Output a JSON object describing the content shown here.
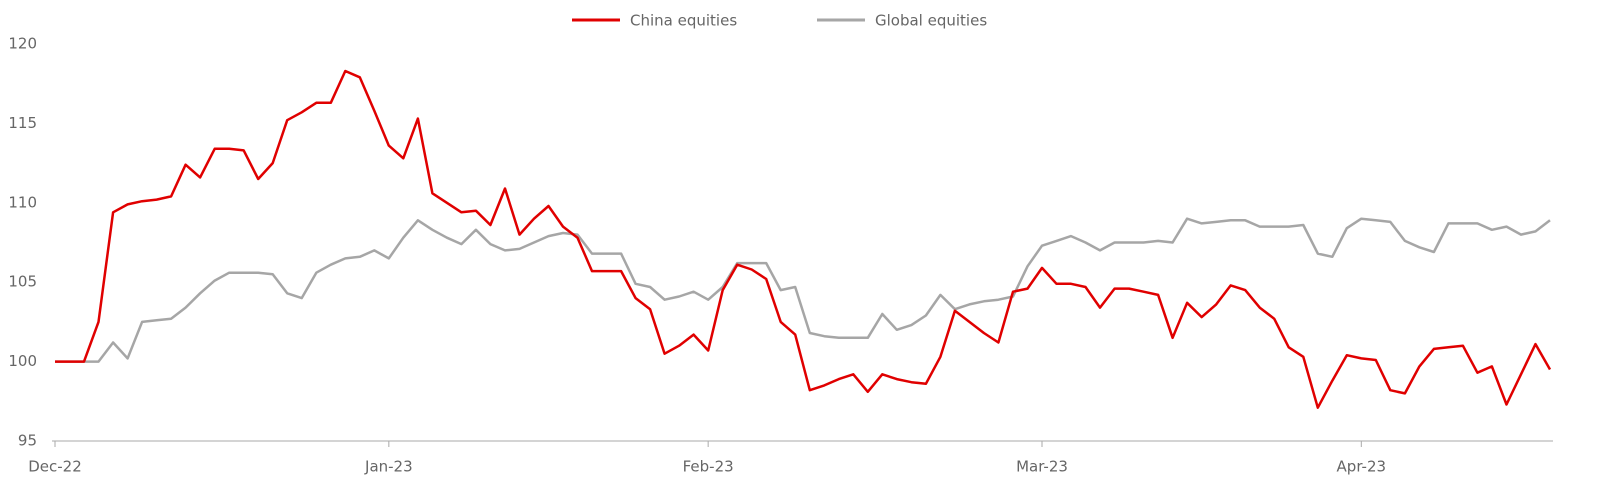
{
  "chart_data": {
    "type": "line",
    "categories": [
      "Dec-22",
      null,
      null,
      null,
      null,
      null,
      null,
      null,
      null,
      null,
      null,
      null,
      null,
      null,
      null,
      null,
      null,
      null,
      null,
      null,
      null,
      null,
      null,
      "Jan-23",
      null,
      null,
      null,
      null,
      null,
      null,
      null,
      null,
      null,
      null,
      null,
      null,
      null,
      null,
      null,
      null,
      null,
      null,
      null,
      null,
      null,
      "Feb-23",
      null,
      null,
      null,
      null,
      null,
      null,
      null,
      null,
      null,
      null,
      null,
      null,
      null,
      null,
      null,
      null,
      null,
      null,
      null,
      null,
      null,
      null,
      "Mar-23",
      null,
      null,
      null,
      null,
      null,
      null,
      null,
      null,
      null,
      null,
      null,
      null,
      null,
      null,
      null,
      null,
      null,
      null,
      null,
      null,
      null,
      "Apr-23",
      null,
      null,
      null,
      null,
      null,
      null,
      null,
      null,
      null,
      null,
      null,
      null,
      null
    ],
    "series": [
      {
        "name": "China equities",
        "color": "#e00000",
        "values": [
          100,
          100,
          100,
          102.5,
          109.4,
          109.9,
          110.1,
          110.2,
          110.4,
          112.4,
          111.6,
          113.4,
          113.4,
          113.3,
          111.5,
          112.5,
          115.2,
          115.7,
          116.3,
          116.3,
          118.3,
          117.9,
          115.8,
          113.6,
          112.8,
          115.3,
          110.6,
          110,
          109.4,
          109.5,
          108.6,
          110.9,
          108,
          109,
          109.8,
          108.5,
          107.8,
          105.7,
          105.7,
          105.7,
          104,
          103.3,
          100.5,
          101,
          101.7,
          100.7,
          104.5,
          106.1,
          105.8,
          105.2,
          102.5,
          101.7,
          98.2,
          98.5,
          98.9,
          99.2,
          98.1,
          99.2,
          98.9,
          98.7,
          98.6,
          100.3,
          103.2,
          102.5,
          101.8,
          101.2,
          104.4,
          104.6,
          105.9,
          104.9,
          104.9,
          104.7,
          103.4,
          104.6,
          104.6,
          104.4,
          104.2,
          101.5,
          103.7,
          102.8,
          103.6,
          104.8,
          104.5,
          103.4,
          102.7,
          100.9,
          100.3,
          97.1,
          98.8,
          100.4,
          100.2,
          100.1,
          98.2,
          98,
          99.7,
          100.8,
          100.9,
          101,
          99.3,
          99.7,
          97.3,
          99.2,
          101.1,
          99.5
        ]
      },
      {
        "name": "Global equities",
        "color": "#a6a6a6",
        "values": [
          100,
          100,
          100,
          100,
          101.2,
          100.2,
          102.5,
          102.6,
          102.7,
          103.4,
          104.3,
          105.1,
          105.6,
          105.6,
          105.6,
          105.5,
          104.3,
          104,
          105.6,
          106.1,
          106.5,
          106.6,
          107,
          106.5,
          107.8,
          108.9,
          108.3,
          107.8,
          107.4,
          108.3,
          107.4,
          107,
          107.1,
          107.5,
          107.9,
          108.1,
          108,
          106.8,
          106.8,
          106.8,
          104.9,
          104.7,
          103.9,
          104.1,
          104.4,
          103.9,
          104.7,
          106.2,
          106.2,
          106.2,
          104.5,
          104.7,
          101.8,
          101.6,
          101.5,
          101.5,
          101.5,
          103,
          102,
          102.3,
          102.9,
          104.2,
          103.3,
          103.6,
          103.8,
          103.9,
          104.1,
          106,
          107.3,
          107.6,
          107.9,
          107.5,
          107,
          107.5,
          107.5,
          107.5,
          107.6,
          107.5,
          109,
          108.7,
          108.8,
          108.9,
          108.9,
          108.5,
          108.5,
          108.5,
          108.6,
          106.8,
          106.6,
          108.4,
          109,
          108.9,
          108.8,
          107.6,
          107.2,
          106.9,
          108.7,
          108.7,
          108.7,
          108.3,
          108.5,
          108,
          108.2,
          108.9
        ]
      }
    ],
    "ylim": [
      95,
      120
    ],
    "yticks": [
      95,
      100,
      105,
      110,
      115,
      120
    ],
    "grid": false,
    "legend": "top"
  }
}
